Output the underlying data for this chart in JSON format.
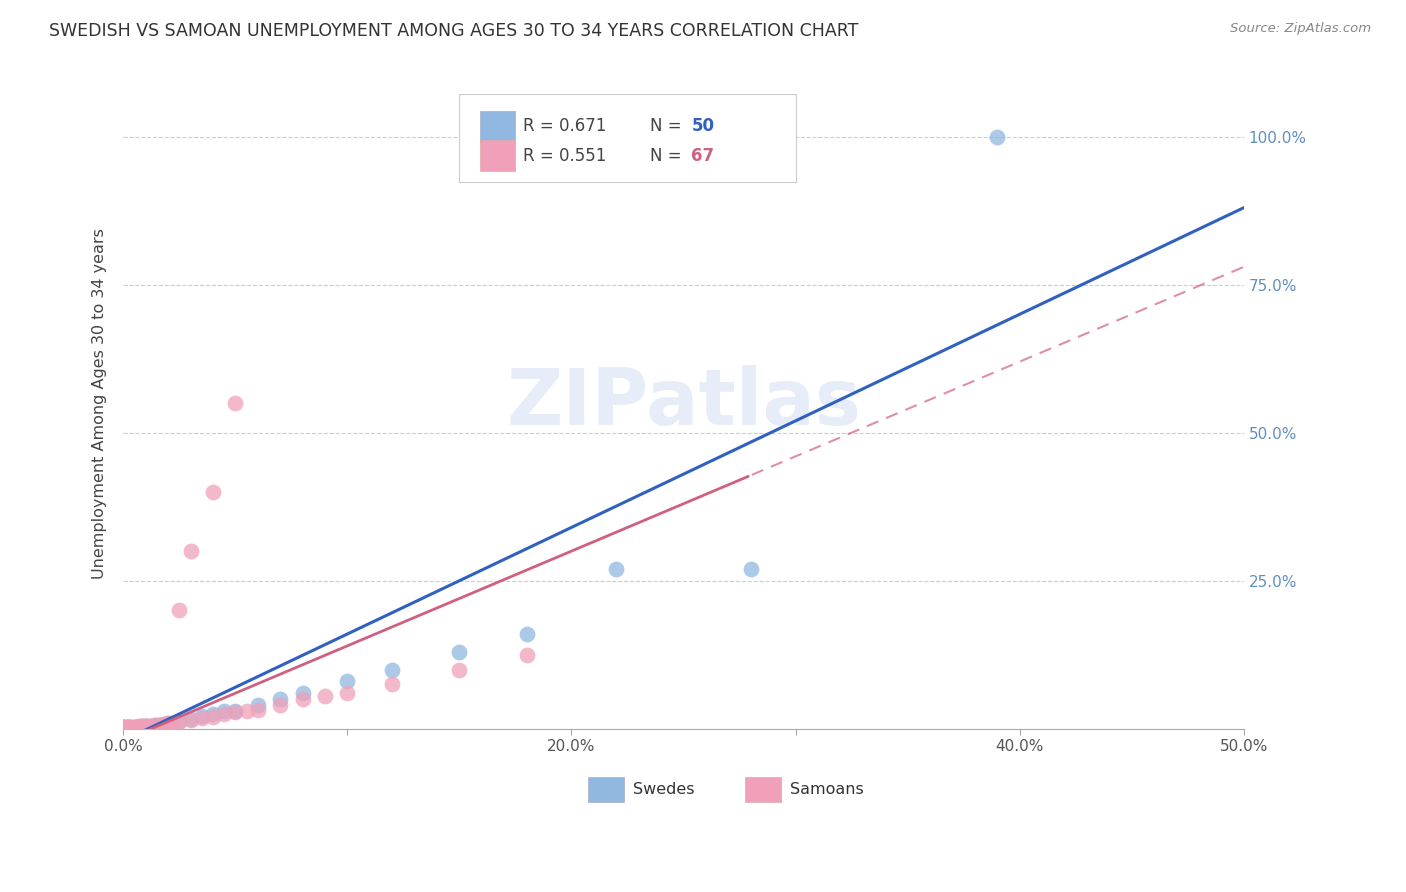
{
  "title": "SWEDISH VS SAMOAN UNEMPLOYMENT AMONG AGES 30 TO 34 YEARS CORRELATION CHART",
  "source": "Source: ZipAtlas.com",
  "ylabel": "Unemployment Among Ages 30 to 34 years",
  "xlim": [
    0.0,
    0.5
  ],
  "ylim": [
    0.0,
    1.1
  ],
  "xticks": [
    0.0,
    0.1,
    0.2,
    0.3,
    0.4,
    0.5
  ],
  "xticklabels": [
    "0.0%",
    "",
    "20.0%",
    "",
    "40.0%",
    "50.0%"
  ],
  "yticks_right": [
    0.0,
    0.25,
    0.5,
    0.75,
    1.0
  ],
  "yticklabels_right": [
    "",
    "25.0%",
    "50.0%",
    "75.0%",
    "100.0%"
  ],
  "grid_color": "#cccccc",
  "swedes_color": "#90b8e0",
  "samoans_color": "#f0a0b8",
  "swedes_line_color": "#3060c0",
  "samoans_line_color": "#d06080",
  "sw_R": 0.671,
  "sw_N": 50,
  "sa_R": 0.551,
  "sa_N": 67,
  "sw_x": [
    0.0,
    0.0,
    0.0,
    0.0,
    0.0,
    0.0,
    0.0,
    0.0,
    0.001,
    0.001,
    0.001,
    0.001,
    0.002,
    0.002,
    0.002,
    0.002,
    0.003,
    0.003,
    0.003,
    0.004,
    0.004,
    0.005,
    0.005,
    0.006,
    0.006,
    0.007,
    0.008,
    0.009,
    0.01,
    0.012,
    0.014,
    0.016,
    0.018,
    0.02,
    0.025,
    0.03,
    0.035,
    0.04,
    0.045,
    0.05,
    0.06,
    0.07,
    0.08,
    0.1,
    0.12,
    0.15,
    0.18,
    0.22,
    0.28,
    0.39
  ],
  "sw_y": [
    0.0,
    0.0,
    0.001,
    0.001,
    0.002,
    0.002,
    0.003,
    0.003,
    0.001,
    0.002,
    0.002,
    0.003,
    0.001,
    0.002,
    0.002,
    0.003,
    0.001,
    0.002,
    0.003,
    0.001,
    0.002,
    0.002,
    0.003,
    0.002,
    0.003,
    0.003,
    0.003,
    0.004,
    0.004,
    0.005,
    0.006,
    0.007,
    0.008,
    0.01,
    0.013,
    0.017,
    0.022,
    0.025,
    0.03,
    0.03,
    0.04,
    0.05,
    0.06,
    0.08,
    0.1,
    0.13,
    0.16,
    0.27,
    0.27,
    1.0
  ],
  "sa_x": [
    0.0,
    0.0,
    0.0,
    0.0,
    0.0,
    0.0,
    0.0,
    0.0,
    0.0,
    0.0,
    0.001,
    0.001,
    0.001,
    0.001,
    0.001,
    0.001,
    0.002,
    0.002,
    0.002,
    0.002,
    0.002,
    0.002,
    0.003,
    0.003,
    0.003,
    0.003,
    0.004,
    0.004,
    0.004,
    0.005,
    0.005,
    0.005,
    0.006,
    0.006,
    0.006,
    0.007,
    0.007,
    0.008,
    0.008,
    0.009,
    0.01,
    0.01,
    0.012,
    0.014,
    0.016,
    0.018,
    0.02,
    0.022,
    0.025,
    0.03,
    0.035,
    0.04,
    0.045,
    0.05,
    0.055,
    0.06,
    0.07,
    0.08,
    0.09,
    0.1,
    0.12,
    0.15,
    0.18,
    0.04,
    0.05,
    0.03,
    0.025
  ],
  "sa_y": [
    0.0,
    0.0,
    0.001,
    0.001,
    0.001,
    0.002,
    0.002,
    0.002,
    0.003,
    0.003,
    0.001,
    0.001,
    0.002,
    0.002,
    0.002,
    0.003,
    0.001,
    0.001,
    0.002,
    0.002,
    0.003,
    0.003,
    0.001,
    0.002,
    0.002,
    0.003,
    0.002,
    0.002,
    0.003,
    0.002,
    0.003,
    0.003,
    0.002,
    0.003,
    0.003,
    0.003,
    0.004,
    0.003,
    0.004,
    0.004,
    0.004,
    0.005,
    0.005,
    0.006,
    0.007,
    0.008,
    0.009,
    0.01,
    0.012,
    0.015,
    0.018,
    0.02,
    0.025,
    0.028,
    0.03,
    0.032,
    0.04,
    0.05,
    0.055,
    0.06,
    0.075,
    0.1,
    0.125,
    0.4,
    0.55,
    0.3,
    0.2
  ]
}
